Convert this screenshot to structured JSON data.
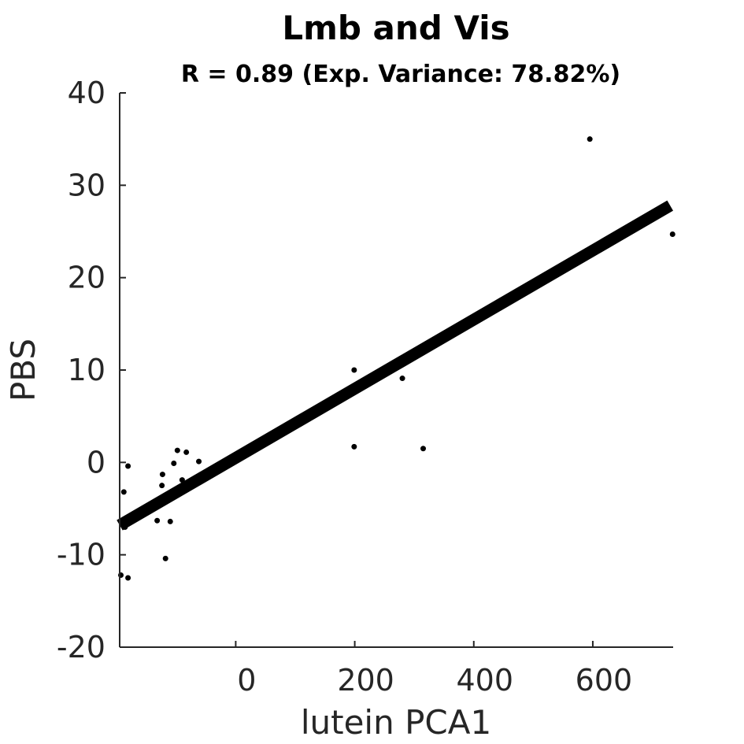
{
  "chart_data": {
    "type": "scatter",
    "title": "Lmb and Vis",
    "subtitle": "R = 0.89 (Exp. Variance: 78.82%)",
    "xlabel": "lutein PCA1",
    "ylabel": "PBS",
    "xlim": [
      -195,
      735
    ],
    "ylim": [
      -20,
      40
    ],
    "xticks": [
      0,
      200,
      400,
      600
    ],
    "xtick_labels": [
      "0",
      "200",
      "400",
      "600"
    ],
    "yticks": [
      -20,
      -10,
      0,
      10,
      20,
      30,
      40
    ],
    "ytick_labels": [
      "-20",
      "-10",
      "0",
      "10",
      "20",
      "30",
      "40"
    ],
    "grid": false,
    "points": [
      {
        "x": -193,
        "y": -12.2
      },
      {
        "x": -188,
        "y": -3.2
      },
      {
        "x": -186,
        "y": -7.0
      },
      {
        "x": -181,
        "y": -0.4
      },
      {
        "x": -181,
        "y": -12.5
      },
      {
        "x": -132,
        "y": -6.3
      },
      {
        "x": -124,
        "y": -2.5
      },
      {
        "x": -123,
        "y": -1.3
      },
      {
        "x": -118,
        "y": -10.4
      },
      {
        "x": -110,
        "y": -6.4
      },
      {
        "x": -104,
        "y": -0.1
      },
      {
        "x": -98,
        "y": 1.3
      },
      {
        "x": -90,
        "y": -1.9
      },
      {
        "x": -83,
        "y": 1.1
      },
      {
        "x": -62,
        "y": 0.1
      },
      {
        "x": 199,
        "y": 10.0
      },
      {
        "x": 199,
        "y": 1.7
      },
      {
        "x": 280,
        "y": 9.1
      },
      {
        "x": 315,
        "y": 1.5
      },
      {
        "x": 595,
        "y": 35.0
      },
      {
        "x": 734,
        "y": 24.7
      }
    ],
    "fit_line": {
      "x": [
        -195,
        730
      ],
      "y": [
        -6.8,
        27.8
      ]
    },
    "colors": {
      "points": "#000000",
      "fit_line": "#000000",
      "axis": "#262626"
    }
  }
}
